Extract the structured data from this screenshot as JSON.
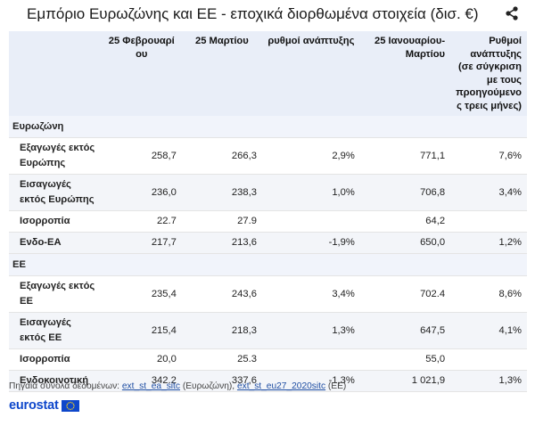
{
  "title": "Εμπόριο Ευρωζώνης και ΕΕ - εποχικά διορθωμένα στοιχεία (δισ. €)",
  "share_icon": "share-icon",
  "table": {
    "headers": [
      "",
      "25 Φεβρουαρί ου",
      "25 Μαρτίου",
      "ρυθμοί ανάπτυξης",
      "25 Ιανουαρίου-Μαρτίου",
      "Ρυθμοί ανάπτυξης (σε σύγκριση με τους προηγούμενο ς τρεις μήνες)"
    ],
    "groups": [
      {
        "name": "Ευρωζώνη",
        "rows": [
          {
            "label": "Εξαγωγές εκτός Ευρώπης",
            "feb": "258,7",
            "mar": "266,3",
            "growth": "2,9%",
            "janmar": "771,1",
            "growth3m": "7,6%"
          },
          {
            "label": "Εισαγωγές εκτός Ευρώπης",
            "feb": "236,0",
            "mar": "238,3",
            "growth": "1,0%",
            "janmar": "706,8",
            "growth3m": "3,4%"
          },
          {
            "label": "Ισορροπία",
            "feb": "22.7",
            "mar": "27.9",
            "growth": "",
            "janmar": "64,2",
            "growth3m": ""
          },
          {
            "label": "Ενδο-ΕΑ",
            "feb": "217,7",
            "mar": "213,6",
            "growth": "-1,9%",
            "janmar": "650,0",
            "growth3m": "1,2%"
          }
        ]
      },
      {
        "name": "ΕΕ",
        "rows": [
          {
            "label": "Εξαγωγές εκτός ΕΕ",
            "feb": "235,4",
            "mar": "243,6",
            "growth": "3,4%",
            "janmar": "702.4",
            "growth3m": "8,6%"
          },
          {
            "label": "Εισαγωγές εκτός ΕΕ",
            "feb": "215,4",
            "mar": "218,3",
            "growth": "1,3%",
            "janmar": "647,5",
            "growth3m": "4,1%"
          },
          {
            "label": "Ισορροπία",
            "feb": "20,0",
            "mar": "25.3",
            "growth": "",
            "janmar": "55,0",
            "growth3m": ""
          },
          {
            "label": "Ενδοκοινοτική",
            "feb": "342.2",
            "mar": "337,6",
            "growth": "-1,3%",
            "janmar": "1 021,9",
            "growth3m": "1,3%"
          }
        ]
      }
    ]
  },
  "source": {
    "prefix": "Πηγαία σύνολα δεδομένων:",
    "link1": "ext_st_ea_sitc",
    "mid": "(Ευρωζώνη),",
    "link2": "ext_st_eu27_2020sitc",
    "suffix": "(ΕΕ)"
  },
  "logo": {
    "text": "eurostat",
    "color": "#0e47cb"
  }
}
